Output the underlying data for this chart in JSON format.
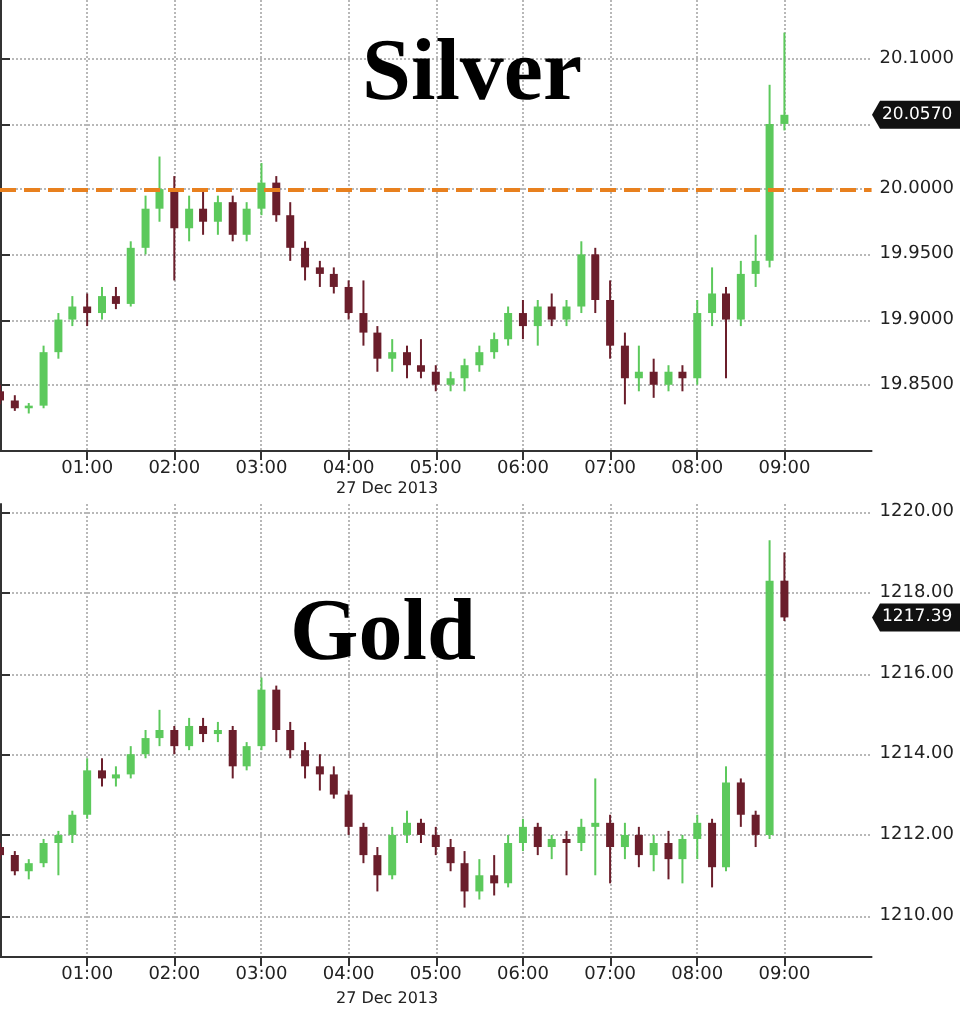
{
  "chart_data": [
    {
      "type": "candlestick",
      "title": "Silver",
      "annotations": [
        "27 Dec 2013",
        "20.0570"
      ],
      "x": [
        0,
        0.17,
        0.33,
        0.5,
        0.67,
        0.83,
        1,
        1.17,
        1.33,
        1.5,
        1.67,
        1.83,
        2,
        2.17,
        2.33,
        2.5,
        2.67,
        2.83,
        3,
        3.17,
        3.33,
        3.5,
        3.67,
        3.83,
        4,
        4.17,
        4.33,
        4.5,
        4.67,
        4.83,
        5,
        5.17,
        5.33,
        5.5,
        5.67,
        5.83,
        6,
        6.17,
        6.33,
        6.5,
        6.67,
        6.83,
        7,
        7.17,
        7.33,
        7.5,
        7.67,
        7.83,
        8,
        8.17,
        8.33,
        8.5,
        8.67,
        8.83,
        9
      ],
      "ohlc": [
        [
          19.845,
          19.85,
          19.835,
          19.838
        ],
        [
          19.838,
          19.842,
          19.83,
          19.832
        ],
        [
          19.832,
          19.836,
          19.828,
          19.834
        ],
        [
          19.834,
          19.88,
          19.832,
          19.875
        ],
        [
          19.875,
          19.905,
          19.87,
          19.9
        ],
        [
          19.9,
          19.918,
          19.895,
          19.91
        ],
        [
          19.91,
          19.92,
          19.895,
          19.905
        ],
        [
          19.905,
          19.925,
          19.9,
          19.918
        ],
        [
          19.918,
          19.925,
          19.908,
          19.912
        ],
        [
          19.912,
          19.96,
          19.91,
          19.955
        ],
        [
          19.955,
          19.995,
          19.95,
          19.985
        ],
        [
          19.985,
          20.025,
          19.975,
          20
        ],
        [
          20,
          20.01,
          19.93,
          19.97
        ],
        [
          19.97,
          19.995,
          19.96,
          19.985
        ],
        [
          19.985,
          20,
          19.965,
          19.975
        ],
        [
          19.975,
          19.995,
          19.965,
          19.99
        ],
        [
          19.99,
          19.995,
          19.96,
          19.965
        ],
        [
          19.965,
          19.99,
          19.96,
          19.985
        ],
        [
          19.985,
          20.02,
          19.98,
          20.005
        ],
        [
          20.005,
          20.01,
          19.975,
          19.98
        ],
        [
          19.98,
          19.99,
          19.945,
          19.955
        ],
        [
          19.955,
          19.96,
          19.93,
          19.94
        ],
        [
          19.94,
          19.945,
          19.925,
          19.935
        ],
        [
          19.935,
          19.94,
          19.92,
          19.925
        ],
        [
          19.925,
          19.93,
          19.9,
          19.905
        ],
        [
          19.905,
          19.93,
          19.88,
          19.89
        ],
        [
          19.89,
          19.895,
          19.86,
          19.87
        ],
        [
          19.87,
          19.885,
          19.86,
          19.875
        ],
        [
          19.875,
          19.88,
          19.855,
          19.865
        ],
        [
          19.865,
          19.885,
          19.855,
          19.86
        ],
        [
          19.86,
          19.865,
          19.845,
          19.85
        ],
        [
          19.85,
          19.86,
          19.845,
          19.855
        ],
        [
          19.855,
          19.87,
          19.845,
          19.865
        ],
        [
          19.865,
          19.88,
          19.86,
          19.875
        ],
        [
          19.875,
          19.89,
          19.87,
          19.885
        ],
        [
          19.885,
          19.91,
          19.88,
          19.905
        ],
        [
          19.905,
          19.915,
          19.885,
          19.895
        ],
        [
          19.895,
          19.915,
          19.88,
          19.91
        ],
        [
          19.91,
          19.92,
          19.895,
          19.9
        ],
        [
          19.9,
          19.915,
          19.895,
          19.91
        ],
        [
          19.91,
          19.96,
          19.905,
          19.95
        ],
        [
          19.95,
          19.955,
          19.905,
          19.915
        ],
        [
          19.915,
          19.93,
          19.87,
          19.88
        ],
        [
          19.88,
          19.89,
          19.835,
          19.855
        ],
        [
          19.855,
          19.88,
          19.845,
          19.86
        ],
        [
          19.86,
          19.87,
          19.84,
          19.85
        ],
        [
          19.85,
          19.865,
          19.845,
          19.86
        ],
        [
          19.86,
          19.865,
          19.845,
          19.855
        ],
        [
          19.855,
          19.915,
          19.85,
          19.905
        ],
        [
          19.905,
          19.94,
          19.895,
          19.92
        ],
        [
          19.92,
          19.925,
          19.855,
          19.9
        ],
        [
          19.9,
          19.945,
          19.895,
          19.935
        ],
        [
          19.935,
          19.965,
          19.925,
          19.945
        ],
        [
          19.945,
          20.08,
          19.94,
          20.05
        ],
        [
          20.05,
          20.12,
          20.045,
          20.057
        ]
      ],
      "colors": [
        "#6b1e2b",
        "#6b1e2b",
        "#5cc95c",
        "#5cc95c",
        "#5cc95c",
        "#5cc95c",
        "#6b1e2b",
        "#5cc95c",
        "#6b1e2b",
        "#5cc95c",
        "#5cc95c",
        "#5cc95c",
        "#6b1e2b",
        "#5cc95c",
        "#6b1e2b",
        "#5cc95c",
        "#6b1e2b",
        "#5cc95c",
        "#5cc95c",
        "#6b1e2b",
        "#6b1e2b",
        "#6b1e2b",
        "#6b1e2b",
        "#6b1e2b",
        "#6b1e2b",
        "#6b1e2b",
        "#6b1e2b",
        "#5cc95c",
        "#6b1e2b",
        "#6b1e2b",
        "#6b1e2b",
        "#5cc95c",
        "#5cc95c",
        "#5cc95c",
        "#5cc95c",
        "#5cc95c",
        "#6b1e2b",
        "#5cc95c",
        "#6b1e2b",
        "#5cc95c",
        "#5cc95c",
        "#6b1e2b",
        "#6b1e2b",
        "#6b1e2b",
        "#5cc95c",
        "#6b1e2b",
        "#5cc95c",
        "#6b1e2b",
        "#5cc95c",
        "#5cc95c",
        "#6b1e2b",
        "#5cc95c",
        "#5cc95c",
        "#5cc95c",
        "#5cc95c"
      ],
      "xlim": [
        0,
        10
      ],
      "xticks": [
        {
          "value": 1,
          "label": "01:00"
        },
        {
          "value": 2,
          "label": "02:00"
        },
        {
          "value": 3,
          "label": "03:00"
        },
        {
          "value": 4,
          "label": "04:00"
        },
        {
          "value": 5,
          "label": "05:00"
        },
        {
          "value": 6,
          "label": "06:00"
        },
        {
          "value": 7,
          "label": "07:00"
        },
        {
          "value": 8,
          "label": "08:00"
        },
        {
          "value": 9,
          "label": "09:00"
        }
      ],
      "ylim": [
        19.8,
        20.145
      ],
      "yticks": [
        {
          "value": 19.8,
          "label": null
        },
        {
          "value": 19.85,
          "label": "19.8500"
        },
        {
          "value": 19.9,
          "label": "19.9000"
        },
        {
          "value": 19.95,
          "label": "19.9500"
        },
        {
          "value": 20,
          "label": "20.0000"
        },
        {
          "value": 20.05,
          "label": null
        },
        {
          "value": 20.1,
          "label": "20.1000"
        }
      ],
      "ref_lines": [
        {
          "axis": "y",
          "value": 20,
          "color": "#e8801e",
          "line_style": "dashed"
        }
      ],
      "grid": true
    },
    {
      "type": "candlestick",
      "title": "Gold",
      "annotations": [
        "27 Dec 2013",
        "1217.39"
      ],
      "x": [
        0,
        0.17,
        0.33,
        0.5,
        0.67,
        0.83,
        1,
        1.17,
        1.33,
        1.5,
        1.67,
        1.83,
        2,
        2.17,
        2.33,
        2.5,
        2.67,
        2.83,
        3,
        3.17,
        3.33,
        3.5,
        3.67,
        3.83,
        4,
        4.17,
        4.33,
        4.5,
        4.67,
        4.83,
        5,
        5.17,
        5.33,
        5.5,
        5.67,
        5.83,
        6,
        6.17,
        6.33,
        6.5,
        6.67,
        6.83,
        7,
        7.17,
        7.33,
        7.5,
        7.67,
        7.83,
        8,
        8.17,
        8.33,
        8.5,
        8.67,
        8.83,
        9
      ],
      "ohlc": [
        [
          1211.7,
          1211.8,
          1211.4,
          1211.5
        ],
        [
          1211.5,
          1211.6,
          1211,
          1211.1
        ],
        [
          1211.1,
          1211.4,
          1210.9,
          1211.3
        ],
        [
          1211.3,
          1211.9,
          1211.2,
          1211.8
        ],
        [
          1211.8,
          1212.1,
          1211,
          1212
        ],
        [
          1212,
          1212.6,
          1211.8,
          1212.5
        ],
        [
          1212.5,
          1213.9,
          1212.4,
          1213.6
        ],
        [
          1213.6,
          1213.9,
          1213.2,
          1213.4
        ],
        [
          1213.4,
          1213.7,
          1213.2,
          1213.5
        ],
        [
          1213.5,
          1214.2,
          1213.4,
          1214
        ],
        [
          1214,
          1214.6,
          1213.9,
          1214.4
        ],
        [
          1214.4,
          1215.1,
          1214.2,
          1214.6
        ],
        [
          1214.6,
          1214.7,
          1214,
          1214.2
        ],
        [
          1214.2,
          1214.9,
          1214.1,
          1214.7
        ],
        [
          1214.7,
          1214.9,
          1214.3,
          1214.5
        ],
        [
          1214.5,
          1214.8,
          1214.3,
          1214.6
        ],
        [
          1214.6,
          1214.7,
          1213.4,
          1213.7
        ],
        [
          1213.7,
          1214.3,
          1213.6,
          1214.2
        ],
        [
          1214.2,
          1215.9,
          1214.1,
          1215.6
        ],
        [
          1215.6,
          1215.7,
          1214.3,
          1214.6
        ],
        [
          1214.6,
          1214.8,
          1213.9,
          1214.1
        ],
        [
          1214.1,
          1214.3,
          1213.4,
          1213.7
        ],
        [
          1213.7,
          1214,
          1213.1,
          1213.5
        ],
        [
          1213.5,
          1213.7,
          1212.9,
          1213
        ],
        [
          1213,
          1213.1,
          1212,
          1212.2
        ],
        [
          1212.2,
          1212.3,
          1211.3,
          1211.5
        ],
        [
          1211.5,
          1211.7,
          1210.6,
          1211
        ],
        [
          1211,
          1212.2,
          1210.9,
          1212
        ],
        [
          1212,
          1212.6,
          1211.8,
          1212.3
        ],
        [
          1212.3,
          1212.4,
          1211.8,
          1212
        ],
        [
          1212,
          1212.2,
          1211.5,
          1211.7
        ],
        [
          1211.7,
          1211.9,
          1211.1,
          1211.3
        ],
        [
          1211.3,
          1211.6,
          1210.2,
          1210.6
        ],
        [
          1210.6,
          1211.4,
          1210.4,
          1211
        ],
        [
          1211,
          1211.5,
          1210.5,
          1210.8
        ],
        [
          1210.8,
          1212,
          1210.7,
          1211.8
        ],
        [
          1211.8,
          1212.4,
          1211.6,
          1212.2
        ],
        [
          1212.2,
          1212.3,
          1211.5,
          1211.7
        ],
        [
          1211.7,
          1212,
          1211.4,
          1211.9
        ],
        [
          1211.9,
          1212.1,
          1211,
          1211.8
        ],
        [
          1211.8,
          1212.4,
          1211.6,
          1212.2
        ],
        [
          1212.2,
          1213.4,
          1211,
          1212.3
        ],
        [
          1212.3,
          1212.5,
          1210.8,
          1211.7
        ],
        [
          1211.7,
          1212.3,
          1211.4,
          1212
        ],
        [
          1212,
          1212.2,
          1211.2,
          1211.5
        ],
        [
          1211.5,
          1212,
          1211.1,
          1211.8
        ],
        [
          1211.8,
          1212.1,
          1210.9,
          1211.4
        ],
        [
          1211.4,
          1212,
          1210.8,
          1211.9
        ],
        [
          1211.9,
          1212.5,
          1211.4,
          1212.3
        ],
        [
          1212.3,
          1212.4,
          1210.7,
          1211.2
        ],
        [
          1211.2,
          1213.7,
          1211.1,
          1213.3
        ],
        [
          1213.3,
          1213.4,
          1212.2,
          1212.5
        ],
        [
          1212.5,
          1212.6,
          1211.7,
          1212
        ],
        [
          1212,
          1219.3,
          1211.9,
          1218.3
        ],
        [
          1218.3,
          1219,
          1217.3,
          1217.39
        ]
      ],
      "colors": [
        "#6b1e2b",
        "#6b1e2b",
        "#5cc95c",
        "#5cc95c",
        "#5cc95c",
        "#5cc95c",
        "#5cc95c",
        "#6b1e2b",
        "#5cc95c",
        "#5cc95c",
        "#5cc95c",
        "#5cc95c",
        "#6b1e2b",
        "#5cc95c",
        "#6b1e2b",
        "#5cc95c",
        "#6b1e2b",
        "#5cc95c",
        "#5cc95c",
        "#6b1e2b",
        "#6b1e2b",
        "#6b1e2b",
        "#6b1e2b",
        "#6b1e2b",
        "#6b1e2b",
        "#6b1e2b",
        "#6b1e2b",
        "#5cc95c",
        "#5cc95c",
        "#6b1e2b",
        "#6b1e2b",
        "#6b1e2b",
        "#6b1e2b",
        "#5cc95c",
        "#6b1e2b",
        "#5cc95c",
        "#5cc95c",
        "#6b1e2b",
        "#5cc95c",
        "#6b1e2b",
        "#5cc95c",
        "#5cc95c",
        "#6b1e2b",
        "#5cc95c",
        "#6b1e2b",
        "#5cc95c",
        "#6b1e2b",
        "#5cc95c",
        "#5cc95c",
        "#6b1e2b",
        "#5cc95c",
        "#6b1e2b",
        "#6b1e2b",
        "#5cc95c",
        "#6b1e2b"
      ],
      "xlim": [
        0,
        10
      ],
      "xticks": [
        {
          "value": 1,
          "label": "01:00"
        },
        {
          "value": 2,
          "label": "02:00"
        },
        {
          "value": 3,
          "label": "03:00"
        },
        {
          "value": 4,
          "label": "04:00"
        },
        {
          "value": 5,
          "label": "05:00"
        },
        {
          "value": 6,
          "label": "06:00"
        },
        {
          "value": 7,
          "label": "07:00"
        },
        {
          "value": 8,
          "label": "08:00"
        },
        {
          "value": 9,
          "label": "09:00"
        }
      ],
      "ylim": [
        1209,
        1220.2
      ],
      "yticks": [
        {
          "value": 1210,
          "label": "1210.00"
        },
        {
          "value": 1212,
          "label": "1212.00"
        },
        {
          "value": 1214,
          "label": "1214.00"
        },
        {
          "value": 1216,
          "label": "1216.00"
        },
        {
          "value": 1218,
          "label": "1218.00"
        },
        {
          "value": 1220,
          "label": "1220.00"
        }
      ],
      "grid": true
    }
  ]
}
